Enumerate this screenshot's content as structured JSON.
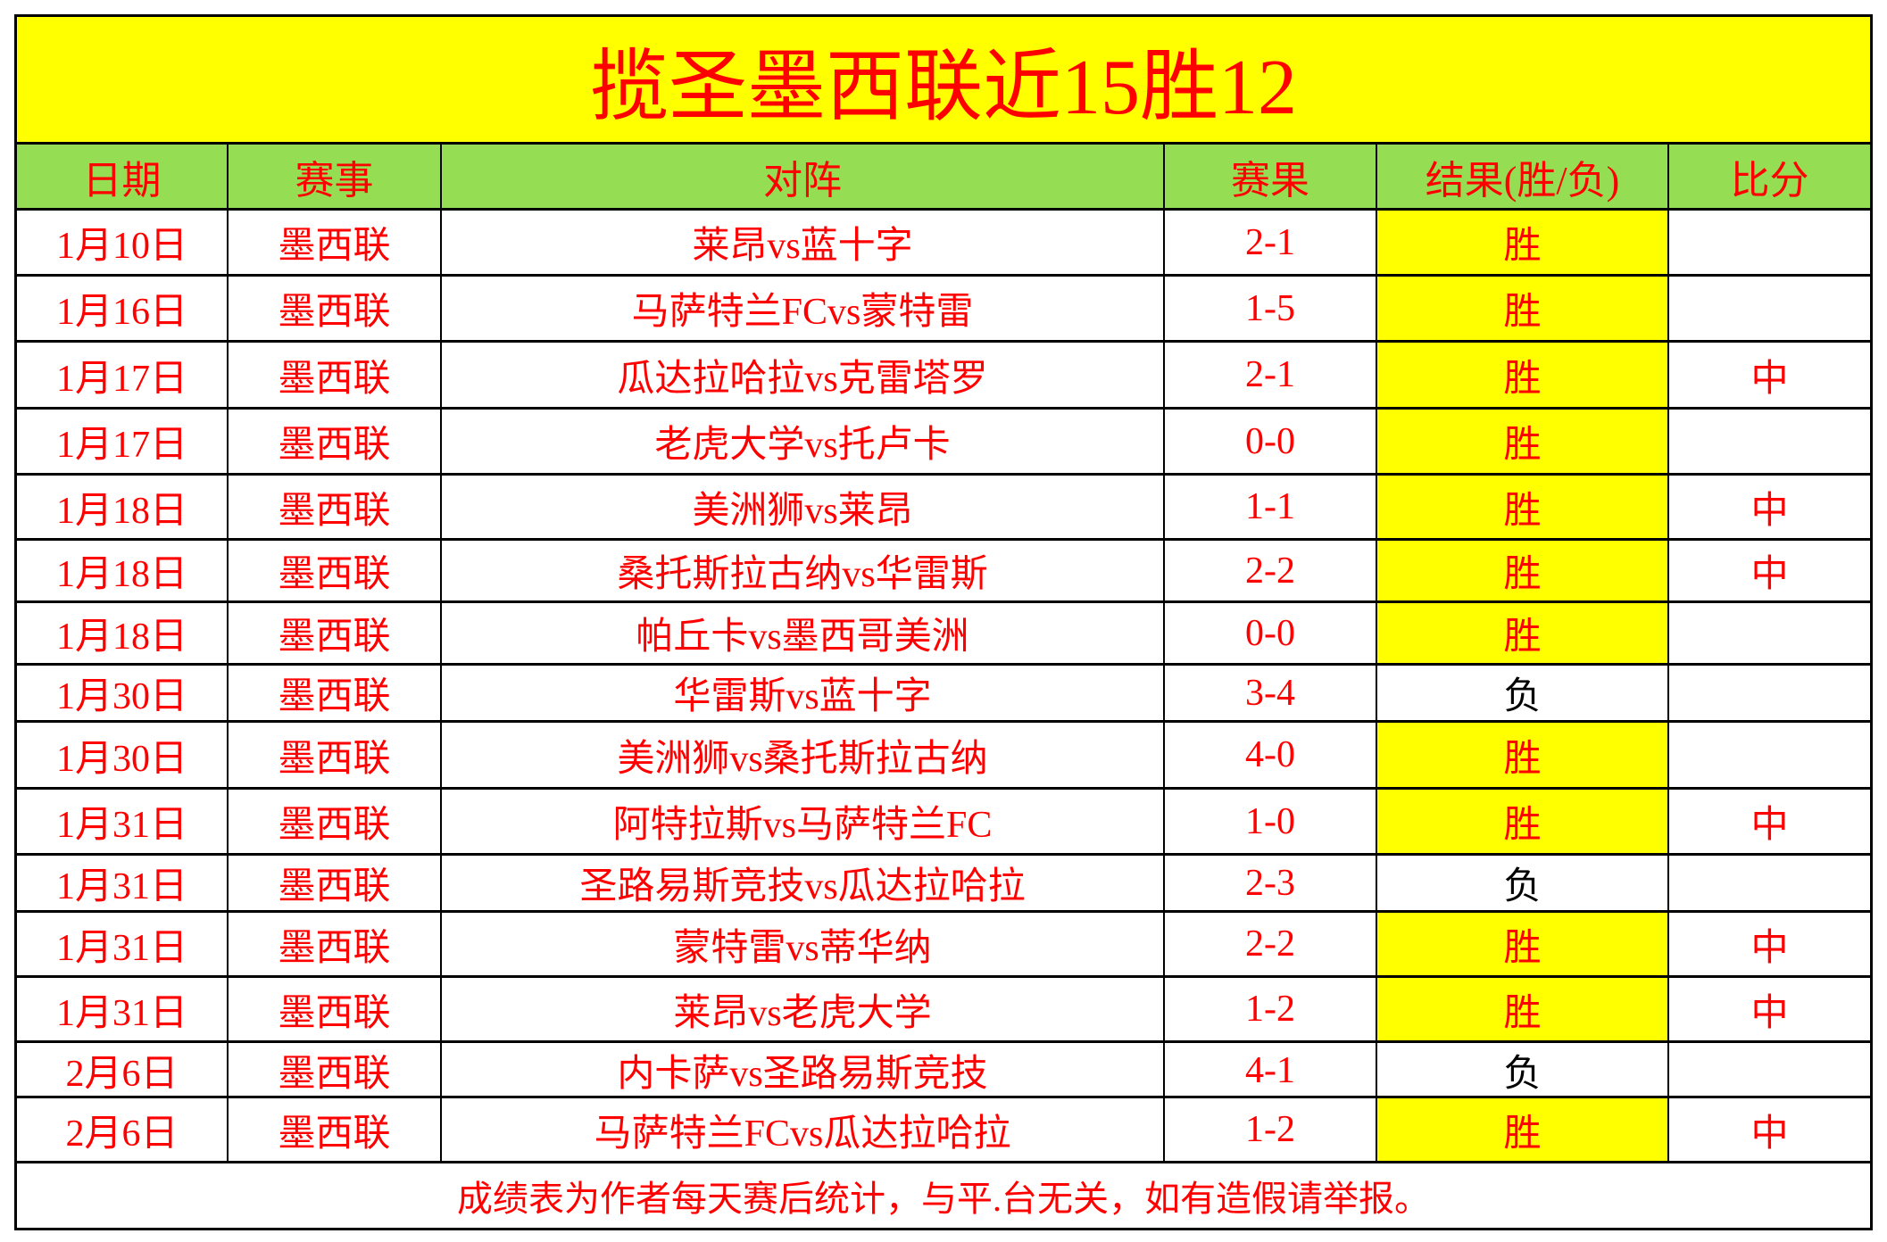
{
  "title": "揽圣墨西联近15胜12",
  "headers": [
    "日期",
    "赛事",
    "对阵",
    "赛果",
    "结果(胜/负)",
    "比分"
  ],
  "rows": [
    {
      "date": "1月10日",
      "league": "墨西联",
      "match": "莱昂vs蓝十字",
      "score": "2-1",
      "result": "胜",
      "mark": ""
    },
    {
      "date": "1月16日",
      "league": "墨西联",
      "match": "马萨特兰FCvs蒙特雷",
      "score": "1-5",
      "result": "胜",
      "mark": ""
    },
    {
      "date": "1月17日",
      "league": "墨西联",
      "match": "瓜达拉哈拉vs克雷塔罗",
      "score": "2-1",
      "result": "胜",
      "mark": "中"
    },
    {
      "date": "1月17日",
      "league": "墨西联",
      "match": "老虎大学vs托卢卡",
      "score": "0-0",
      "result": "胜",
      "mark": ""
    },
    {
      "date": "1月18日",
      "league": "墨西联",
      "match": "美洲狮vs莱昂",
      "score": "1-1",
      "result": "胜",
      "mark": "中"
    },
    {
      "date": "1月18日",
      "league": "墨西联",
      "match": "桑托斯拉古纳vs华雷斯",
      "score": "2-2",
      "result": "胜",
      "mark": "中"
    },
    {
      "date": "1月18日",
      "league": "墨西联",
      "match": "帕丘卡vs墨西哥美洲",
      "score": "0-0",
      "result": "胜",
      "mark": ""
    },
    {
      "date": "1月30日",
      "league": "墨西联",
      "match": "华雷斯vs蓝十字",
      "score": "3-4",
      "result": "负",
      "mark": ""
    },
    {
      "date": "1月30日",
      "league": "墨西联",
      "match": "美洲狮vs桑托斯拉古纳",
      "score": "4-0",
      "result": "胜",
      "mark": ""
    },
    {
      "date": "1月31日",
      "league": "墨西联",
      "match": "阿特拉斯vs马萨特兰FC",
      "score": "1-0",
      "result": "胜",
      "mark": "中"
    },
    {
      "date": "1月31日",
      "league": "墨西联",
      "match": "圣路易斯竞技vs瓜达拉哈拉",
      "score": "2-3",
      "result": "负",
      "mark": ""
    },
    {
      "date": "1月31日",
      "league": "墨西联",
      "match": "蒙特雷vs蒂华纳",
      "score": "2-2",
      "result": "胜",
      "mark": "中"
    },
    {
      "date": "1月31日",
      "league": "墨西联",
      "match": "莱昂vs老虎大学",
      "score": "1-2",
      "result": "胜",
      "mark": "中"
    },
    {
      "date": "2月6日",
      "league": "墨西联",
      "match": "内卡萨vs圣路易斯竞技",
      "score": "4-1",
      "result": "负",
      "mark": ""
    },
    {
      "date": "2月6日",
      "league": "墨西联",
      "match": "马萨特兰FCvs瓜达拉哈拉",
      "score": "1-2",
      "result": "胜",
      "mark": "中"
    }
  ],
  "footer": "成绩表为作者每天赛后统计，与平.台无关，如有造假请举报。",
  "colors": {
    "title_bg": "#ffff00",
    "header_bg": "#95dd52",
    "text": "#ff0000",
    "win_bg": "#ffff00",
    "lose_text": "#000000"
  }
}
